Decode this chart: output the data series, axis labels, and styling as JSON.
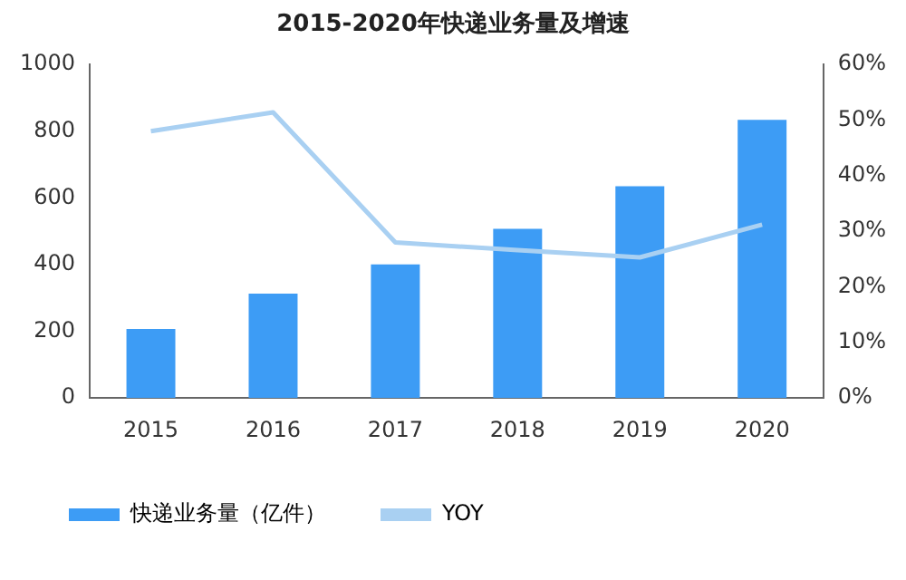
{
  "chart_data": {
    "type": "bar",
    "title": "2015-2020年快递业务量及增速",
    "categories": [
      "2015",
      "2016",
      "2017",
      "2018",
      "2019",
      "2020"
    ],
    "series": [
      {
        "name": "快递业务量（亿件）",
        "color": "#3d9cf5",
        "values": [
          207,
          313,
          401,
          507,
          635,
          834
        ]
      },
      {
        "name": "YOY",
        "type": "line",
        "axis": "y2",
        "color": "#a9d0f2",
        "values": [
          48,
          51.4,
          28,
          26.6,
          25.3,
          31.2
        ]
      }
    ],
    "ylim": [
      0,
      1000
    ],
    "yticks": [
      0,
      200,
      400,
      600,
      800,
      1000
    ],
    "y2lim": [
      0,
      60
    ],
    "y2ticks": [
      {
        "value": 0,
        "label": "0%"
      },
      {
        "value": 10,
        "label": "10%"
      },
      {
        "value": 20,
        "label": "20%"
      },
      {
        "value": 30,
        "label": "30%"
      },
      {
        "value": 40,
        "label": "40%"
      },
      {
        "value": 50,
        "label": "50%"
      },
      {
        "value": 60,
        "label": "60%"
      }
    ],
    "grid": false,
    "legend": "bottom",
    "marker": "none",
    "line_style": "solid"
  }
}
